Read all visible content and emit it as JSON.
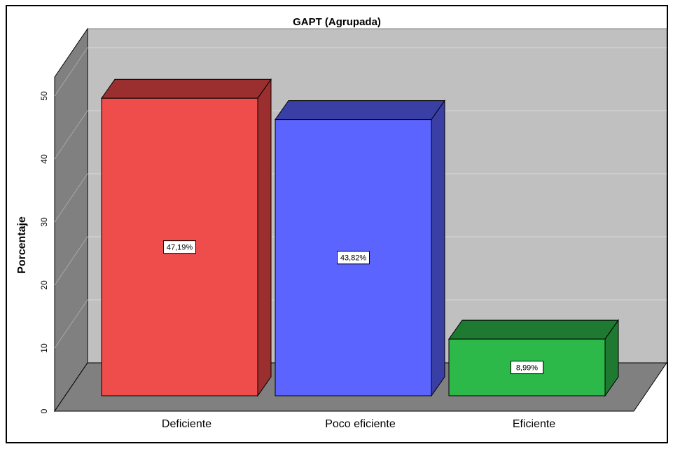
{
  "chart_data": {
    "type": "bar3d",
    "title": "GAPT (Agrupada)",
    "y_label": "Porcentaje",
    "categories": [
      "Deficiente",
      "Poco eficiente",
      "Eficiente"
    ],
    "values": [
      47.19,
      43.82,
      8.99
    ],
    "value_labels": [
      "47,19%",
      "43,82%",
      "8,99%"
    ],
    "colors": [
      "#ef4c4c",
      "#5c64ff",
      "#2db84a"
    ],
    "ylim": [
      0,
      53
    ],
    "yticks": [
      0,
      10,
      20,
      30,
      40,
      50
    ],
    "grid": true
  }
}
